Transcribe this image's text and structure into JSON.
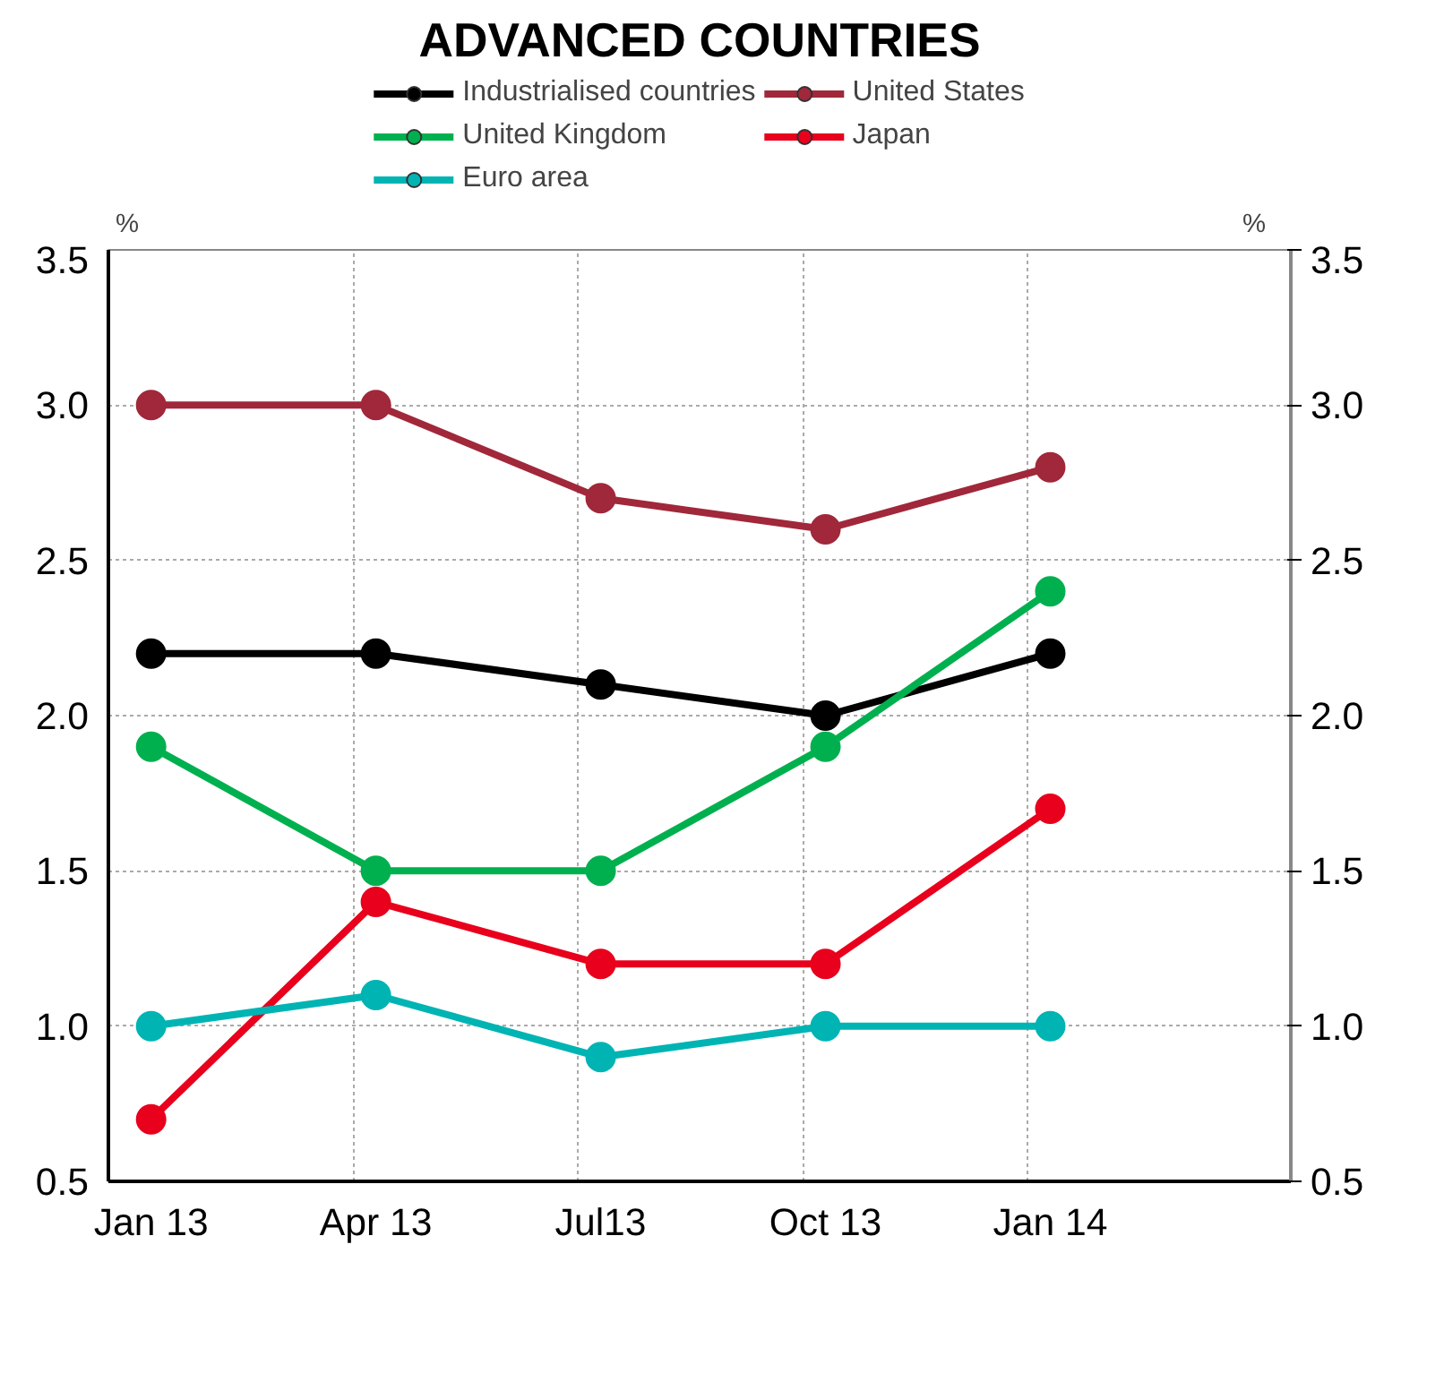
{
  "chart_data": {
    "type": "line",
    "title": "ADVANCED COUNTRIES",
    "ylabel": "%",
    "y2label": "%",
    "categories": [
      "Jan 13",
      "Apr 13",
      "Jul13",
      "Oct 13",
      "Jan 14"
    ],
    "series": [
      {
        "name": "Industrialised countries",
        "color": "#000000",
        "values": [
          2.2,
          2.2,
          2.1,
          2.0,
          2.2
        ]
      },
      {
        "name": "United States",
        "color": "#a0283a",
        "values": [
          3.0,
          3.0,
          2.7,
          2.6,
          2.8
        ]
      },
      {
        "name": "United Kingdom",
        "color": "#00b04f",
        "values": [
          1.9,
          1.5,
          1.5,
          1.9,
          2.4
        ]
      },
      {
        "name": "Japan",
        "color": "#e8001c",
        "values": [
          0.7,
          1.4,
          1.2,
          1.2,
          1.7
        ]
      },
      {
        "name": "Euro area",
        "color": "#00b4b4",
        "values": [
          1.0,
          1.1,
          0.9,
          1.0,
          1.0
        ]
      }
    ],
    "ylim": [
      0.5,
      3.5
    ],
    "yticks": [
      0.5,
      {
        "value": 1,
        "label": "1.0"
      },
      1.5,
      {
        "value": 2,
        "label": "2.0"
      },
      2.5,
      {
        "value": 3,
        "label": "3.0"
      },
      3.5
    ],
    "y2lim": [
      0.5,
      3.5
    ],
    "y2ticks": [
      0.5,
      {
        "value": 1,
        "label": "1.0"
      },
      1.5,
      {
        "value": 2,
        "label": "2.0"
      },
      2.5,
      {
        "value": 3,
        "label": "3.0"
      },
      3.5
    ],
    "grid": true,
    "legend": "top",
    "marker": "circle",
    "line_style": "solid"
  }
}
